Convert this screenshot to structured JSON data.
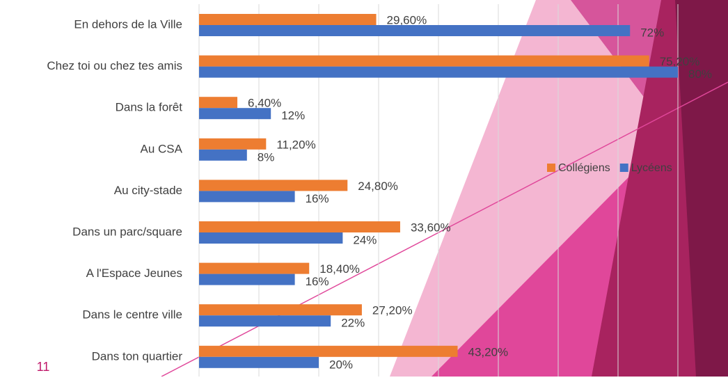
{
  "slide_number": "11",
  "chart_data": {
    "type": "bar",
    "orientation": "horizontal",
    "categories": [
      "En dehors de la Ville",
      "Chez toi ou chez tes amis",
      "Dans la forêt",
      "Au CSA",
      "Au city-stade",
      "Dans un parc/square",
      "A l'Espace Jeunes",
      "Dans le centre ville",
      "Dans ton quartier"
    ],
    "series": [
      {
        "name": "Collégiens",
        "color": "#ed7d31",
        "values": [
          29.6,
          75.2,
          6.4,
          11.2,
          24.8,
          33.6,
          18.4,
          27.2,
          43.2
        ],
        "value_labels": [
          "29,60%",
          "75,20%",
          "6,40%",
          "11,20%",
          "24,80%",
          "33,60%",
          "18,40%",
          "27,20%",
          "43,20%"
        ]
      },
      {
        "name": "Lycéens",
        "color": "#4472c4",
        "values": [
          72,
          80,
          12,
          8,
          16,
          24,
          16,
          22,
          20
        ],
        "value_labels": [
          "72%",
          "80%",
          "12%",
          "8%",
          "16%",
          "24%",
          "16%",
          "22%",
          "20%"
        ]
      }
    ],
    "xlim": [
      0,
      80
    ],
    "xticks": [
      0,
      10,
      20,
      30,
      40,
      50,
      60,
      70,
      80
    ],
    "grid": true,
    "legend": "right"
  }
}
